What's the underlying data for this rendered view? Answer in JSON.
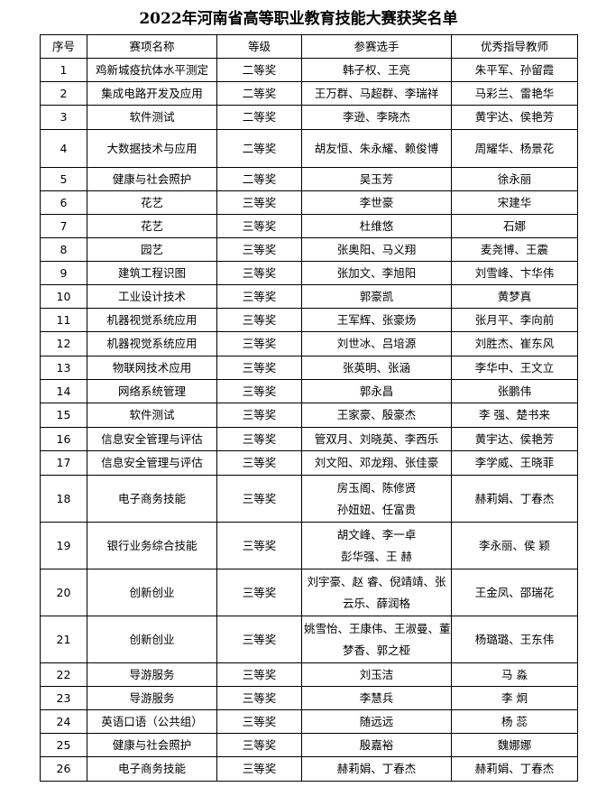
{
  "title": "2022年河南省高等职业教育技能大赛获奖名单",
  "table": {
    "header": [
      "序号",
      "赛项名称",
      "等级",
      "参赛选手",
      "优秀指导教师"
    ],
    "rows": [
      [
        "1",
        "鸡新城疫抗体水平测定",
        "二等奖",
        "韩子权、王亮",
        "朱平军、孙留霞"
      ],
      [
        "2",
        "集成电路开发及应用",
        "二等奖",
        "王万群、马超群、李瑞祥",
        "马彩兰、雷艳华"
      ],
      [
        "3",
        "软件测试",
        "二等奖",
        "李逊、李晓杰",
        "黄宇达、侯艳芳"
      ],
      [
        "4",
        "大数据技术与应用",
        "二等奖",
        "胡友恒、朱永耀、赖俊博",
        "周耀华、杨景花"
      ],
      [
        "5",
        "健康与社会照护",
        "二等奖",
        "吴玉芳",
        "徐永丽"
      ],
      [
        "6",
        "花艺",
        "三等奖",
        "李世豪",
        "宋建华"
      ],
      [
        "7",
        "花艺",
        "三等奖",
        "杜维悠",
        "石娜"
      ],
      [
        "8",
        "园艺",
        "三等奖",
        "张奥阳、马义翔",
        "麦尧博、王震"
      ],
      [
        "9",
        "建筑工程识图",
        "三等奖",
        "张加文、李旭阳",
        "刘雪峰、卞华伟"
      ],
      [
        "10",
        "工业设计技术",
        "三等奖",
        "郭豪凯",
        "黄梦真"
      ],
      [
        "11",
        "机器视觉系统应用",
        "三等奖",
        "王军辉、张豪炀",
        "张月平、李向前"
      ],
      [
        "12",
        "机器视觉系统应用",
        "三等奖",
        "刘世冰、吕培源",
        "刘胜杰、崔东风"
      ],
      [
        "13",
        "物联网技术应用",
        "三等奖",
        "张英明、张涵",
        "李华中、王文立"
      ],
      [
        "14",
        "网络系统管理",
        "三等奖",
        "郭永昌",
        "张鹏伟"
      ],
      [
        "15",
        "软件测试",
        "三等奖",
        "王家豪、殷豪杰",
        "李 强、楚书来"
      ],
      [
        "16",
        "信息安全管理与评估",
        "三等奖",
        "管双月、刘晓英、李西乐",
        "黄宇达、侯艳芳"
      ],
      [
        "17",
        "信息安全管理与评估",
        "三等奖",
        "刘文阳、邓龙翔、张佳豪",
        "李学威、王晓菲"
      ],
      [
        "18",
        "电子商务技能",
        "三等奖",
        [
          "房玉阁、陈修贤",
          "孙妞妞、任富贵"
        ],
        "赫莉娟、丁春杰"
      ],
      [
        "19",
        "银行业务综合技能",
        "三等奖",
        [
          "胡文峰、李一卓",
          "彭华强、王 赫"
        ],
        "李永丽、侯 颖"
      ],
      [
        "20",
        "创新创业",
        "三等奖",
        [
          "刘宇豪、赵 睿、倪靖靖、张",
          "云乐、薛润格"
        ],
        "王金凤、邵瑞花"
      ],
      [
        "21",
        "创新创业",
        "三等奖",
        [
          "姚雪怡、王康伟、王淑曼、董",
          "梦香、郭之桠"
        ],
        "杨璐璐、王东伟"
      ],
      [
        "22",
        "导游服务",
        "三等奖",
        "刘玉洁",
        "马 淼"
      ],
      [
        "23",
        "导游服务",
        "三等奖",
        "李慧兵",
        "李 炯"
      ],
      [
        "24",
        "英语口语（公共组）",
        "三等奖",
        "随远远",
        "杨 蕊"
      ],
      [
        "25",
        "健康与社会照护",
        "三等奖",
        "殷嘉裕",
        "魏娜娜"
      ],
      [
        "26",
        "电子商务技能",
        "三等奖",
        "赫莉娟、丁春杰",
        "赫莉娟、丁春杰"
      ]
    ]
  }
}
